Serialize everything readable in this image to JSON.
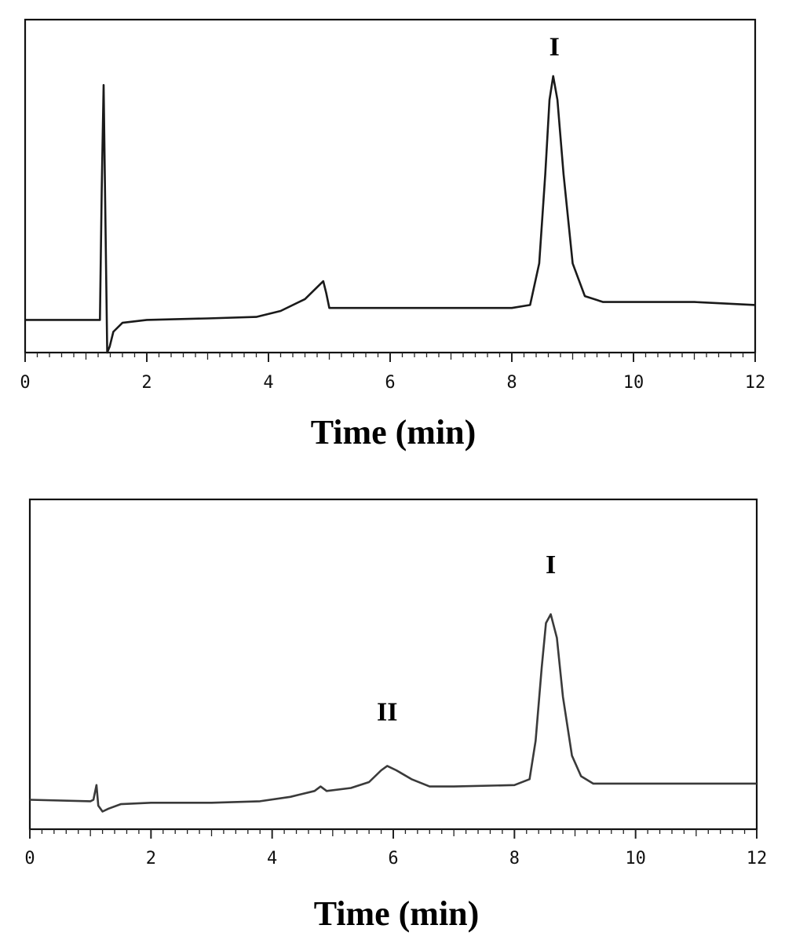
{
  "chart_data": [
    {
      "type": "line",
      "title": "",
      "xlabel": "Time (min)",
      "ylabel": "",
      "xlim": [
        0,
        12
      ],
      "x_ticks": [
        "0",
        "2",
        "4",
        "6",
        "8",
        "10",
        "12"
      ],
      "grid": false,
      "legend": "none",
      "line_color": "#1a1a1a",
      "series": [
        {
          "points": [
            [
              0,
              0.11
            ],
            [
              1.2,
              0.11
            ],
            [
              1.23,
              0.11
            ],
            [
              1.26,
              0.55
            ],
            [
              1.29,
              0.9
            ],
            [
              1.31,
              0.6
            ],
            [
              1.35,
              0.0
            ],
            [
              1.39,
              0.02
            ],
            [
              1.45,
              0.07
            ],
            [
              1.6,
              0.1
            ],
            [
              2,
              0.11
            ],
            [
              3,
              0.115
            ],
            [
              3.8,
              0.12
            ],
            [
              4.2,
              0.14
            ],
            [
              4.6,
              0.18
            ],
            [
              4.9,
              0.24
            ],
            [
              4.95,
              0.2
            ],
            [
              5.0,
              0.15
            ],
            [
              5.1,
              0.15
            ],
            [
              6,
              0.15
            ],
            [
              7,
              0.15
            ],
            [
              8.0,
              0.15
            ],
            [
              8.3,
              0.16
            ],
            [
              8.45,
              0.3
            ],
            [
              8.55,
              0.6
            ],
            [
              8.62,
              0.85
            ],
            [
              8.68,
              0.93
            ],
            [
              8.75,
              0.85
            ],
            [
              8.85,
              0.6
            ],
            [
              9.0,
              0.3
            ],
            [
              9.2,
              0.19
            ],
            [
              9.5,
              0.17
            ],
            [
              10,
              0.17
            ],
            [
              11,
              0.17
            ],
            [
              12,
              0.16
            ]
          ]
        }
      ],
      "annotations": [
        {
          "text": "I",
          "x": 8.7,
          "y": 1.0
        }
      ]
    },
    {
      "type": "line",
      "title": "",
      "xlabel": "Time (min)",
      "ylabel": "",
      "xlim": [
        0,
        12
      ],
      "x_ticks": [
        "0",
        "2",
        "4",
        "6",
        "8",
        "10",
        "12"
      ],
      "grid": false,
      "legend": "none",
      "line_color": "#3a3a3a",
      "series": [
        {
          "points": [
            [
              0,
              0.1
            ],
            [
              1.0,
              0.095
            ],
            [
              1.05,
              0.1
            ],
            [
              1.1,
              0.15
            ],
            [
              1.13,
              0.08
            ],
            [
              1.2,
              0.06
            ],
            [
              1.3,
              0.07
            ],
            [
              1.5,
              0.085
            ],
            [
              2,
              0.09
            ],
            [
              3,
              0.09
            ],
            [
              3.8,
              0.095
            ],
            [
              4.3,
              0.11
            ],
            [
              4.7,
              0.13
            ],
            [
              4.8,
              0.145
            ],
            [
              4.9,
              0.13
            ],
            [
              5.3,
              0.14
            ],
            [
              5.6,
              0.16
            ],
            [
              5.8,
              0.2
            ],
            [
              5.9,
              0.215
            ],
            [
              6.05,
              0.2
            ],
            [
              6.3,
              0.17
            ],
            [
              6.6,
              0.145
            ],
            [
              7,
              0.145
            ],
            [
              8,
              0.15
            ],
            [
              8.25,
              0.17
            ],
            [
              8.35,
              0.3
            ],
            [
              8.45,
              0.55
            ],
            [
              8.52,
              0.7
            ],
            [
              8.6,
              0.73
            ],
            [
              8.7,
              0.65
            ],
            [
              8.8,
              0.45
            ],
            [
              8.95,
              0.25
            ],
            [
              9.1,
              0.18
            ],
            [
              9.3,
              0.155
            ],
            [
              10,
              0.155
            ],
            [
              12,
              0.155
            ]
          ]
        }
      ],
      "annotations": [
        {
          "text": "I",
          "x": 8.6,
          "y": 0.87
        },
        {
          "text": "II",
          "x": 5.9,
          "y": 0.37
        }
      ]
    }
  ]
}
